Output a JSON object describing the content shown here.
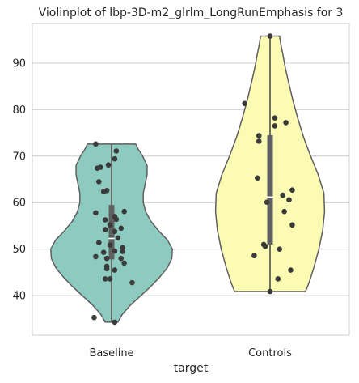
{
  "chart_data": {
    "type": "violin",
    "title": "Violinplot of lbp-3D-m2_glrlm_LongRunEmphasis for 3",
    "xlabel": "target",
    "ylabel": "",
    "categories": [
      "Baseline",
      "Controls"
    ],
    "ylim": [
      31.5,
      98.5
    ],
    "yticks": [
      40,
      50,
      60,
      70,
      80,
      90
    ],
    "grid": true,
    "colors": {
      "Baseline": "#8dcbc0",
      "Controls": "#fbfbb4",
      "outline": "#5f5f5f",
      "points": "#3a3a3a",
      "box": "#606060",
      "median": "#ffffff",
      "grid": "#cccccc",
      "spine": "#cccccc"
    },
    "violins": [
      {
        "name": "Baseline",
        "min": 34.3,
        "max": 72.6,
        "q1": 47.8,
        "median": 52.3,
        "q3": 59.5,
        "width_profile": [
          [
            34.3,
            0.1
          ],
          [
            36,
            0.17
          ],
          [
            38,
            0.3
          ],
          [
            40,
            0.46
          ],
          [
            42,
            0.62
          ],
          [
            44,
            0.76
          ],
          [
            46,
            0.88
          ],
          [
            48,
            0.95
          ],
          [
            50,
            0.96
          ],
          [
            52,
            0.88
          ],
          [
            54,
            0.74
          ],
          [
            56,
            0.62
          ],
          [
            58,
            0.54
          ],
          [
            60,
            0.5
          ],
          [
            62,
            0.5
          ],
          [
            64,
            0.53
          ],
          [
            66,
            0.56
          ],
          [
            68,
            0.56
          ],
          [
            70,
            0.49
          ],
          [
            71.5,
            0.42
          ],
          [
            72.6,
            0.38
          ]
        ],
        "points": [
          [
            -0.1,
            72.6
          ],
          [
            0.03,
            71.1
          ],
          [
            0.02,
            69.4
          ],
          [
            -0.02,
            68.1
          ],
          [
            -0.09,
            67.4
          ],
          [
            -0.07,
            67.6
          ],
          [
            -0.08,
            64.5
          ],
          [
            -0.05,
            62.4
          ],
          [
            -0.03,
            62.6
          ],
          [
            0.08,
            58.1
          ],
          [
            -0.1,
            57.8
          ],
          [
            0.02,
            57.0
          ],
          [
            0.03,
            56.4
          ],
          [
            -0.04,
            56.3
          ],
          [
            -0.01,
            55.2
          ],
          [
            0.06,
            54.5
          ],
          [
            -0.04,
            54.2
          ],
          [
            0.02,
            53.8
          ],
          [
            0.04,
            52.4
          ],
          [
            -0.08,
            51.4
          ],
          [
            -0.01,
            50.9
          ],
          [
            0.07,
            50.3
          ],
          [
            0.07,
            49.5
          ],
          [
            -0.05,
            49.3
          ],
          [
            0.02,
            49.6
          ],
          [
            -0.1,
            48.4
          ],
          [
            -0.03,
            48.0
          ],
          [
            0.06,
            48.0
          ],
          [
            0.08,
            47.0
          ],
          [
            -0.03,
            46.3
          ],
          [
            -0.03,
            45.8
          ],
          [
            0.02,
            45.5
          ],
          [
            -0.04,
            43.6
          ],
          [
            -0.01,
            43.6
          ],
          [
            0.13,
            42.8
          ],
          [
            -0.11,
            35.3
          ],
          [
            0.02,
            34.3
          ]
        ]
      },
      {
        "name": "Controls",
        "min": 40.9,
        "max": 95.8,
        "q1": 51.0,
        "median": 61.2,
        "q3": 74.5,
        "width_profile": [
          [
            40.9,
            0.56
          ],
          [
            43,
            0.62
          ],
          [
            46,
            0.69
          ],
          [
            50,
            0.77
          ],
          [
            54,
            0.83
          ],
          [
            58,
            0.86
          ],
          [
            62,
            0.85
          ],
          [
            66,
            0.76
          ],
          [
            70,
            0.64
          ],
          [
            74,
            0.53
          ],
          [
            78,
            0.44
          ],
          [
            82,
            0.36
          ],
          [
            86,
            0.29
          ],
          [
            89,
            0.24
          ],
          [
            92,
            0.2
          ],
          [
            94,
            0.17
          ],
          [
            95.8,
            0.15
          ]
        ],
        "points": [
          [
            0.0,
            95.8
          ],
          [
            -0.16,
            81.3
          ],
          [
            0.03,
            78.2
          ],
          [
            0.1,
            77.2
          ],
          [
            0.03,
            76.5
          ],
          [
            -0.07,
            74.4
          ],
          [
            -0.07,
            73.2
          ],
          [
            -0.08,
            65.3
          ],
          [
            0.14,
            62.7
          ],
          [
            0.08,
            61.6
          ],
          [
            0.12,
            60.6
          ],
          [
            -0.02,
            60.1
          ],
          [
            0.09,
            58.1
          ],
          [
            0.14,
            55.2
          ],
          [
            -0.04,
            51.0
          ],
          [
            -0.03,
            50.6
          ],
          [
            0.06,
            50.0
          ],
          [
            -0.1,
            48.6
          ],
          [
            0.13,
            45.5
          ],
          [
            0.05,
            43.6
          ],
          [
            0.0,
            40.9
          ]
        ]
      }
    ]
  }
}
